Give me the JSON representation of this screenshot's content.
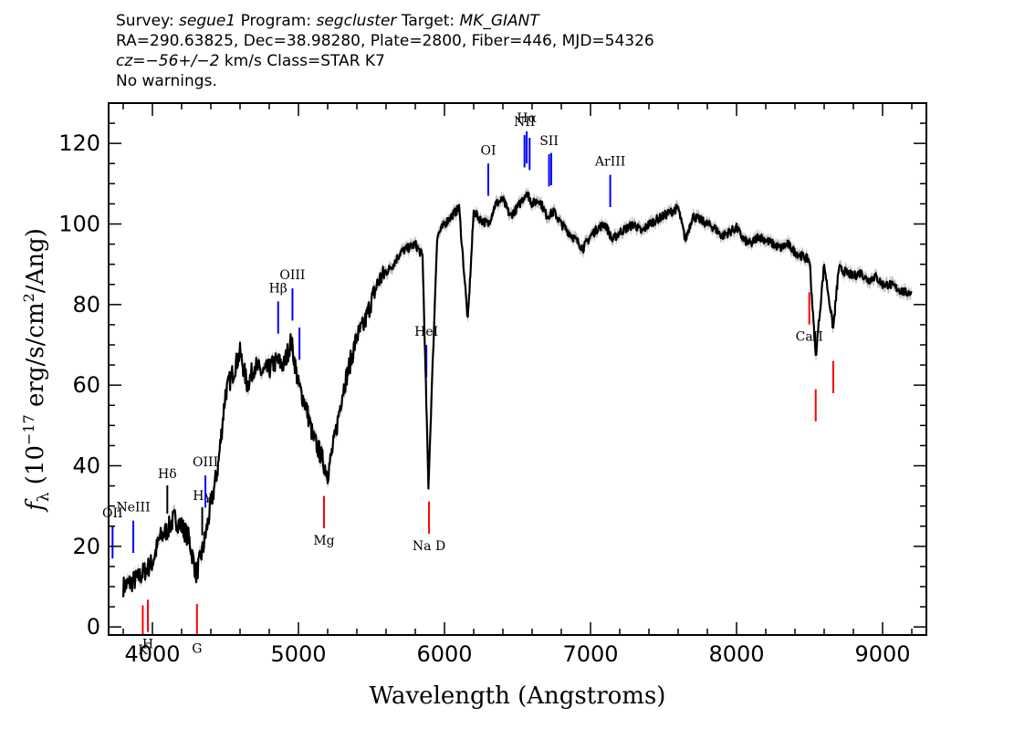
{
  "header": {
    "survey_label": "Survey:",
    "survey": "segue1",
    "program_label": "Program:",
    "program": "segcluster",
    "target_label": "Target:",
    "target": "MK_GIANT",
    "line2": "RA=290.63825, Dec=38.98280, Plate=2800, Fiber=446, MJD=54326",
    "cz_label": "cz=",
    "cz": "−56+/−2",
    "cz_rest": " km/s Class=STAR K7",
    "warnings": "No warnings."
  },
  "colors": {
    "spectrum": "#000000",
    "error": "#c0c0c0",
    "emission": "#0000ff",
    "absorption": "#ff0000",
    "ref_line": "#000000"
  },
  "chart_data": {
    "type": "line",
    "title": "",
    "xlabel": "Wavelength (Angstroms)",
    "ylabel": "f_λ (10^-17 erg/s/cm^2/Ang)",
    "xlim": [
      3700,
      9300
    ],
    "ylim": [
      -2,
      130
    ],
    "xticks": [
      4000,
      5000,
      6000,
      7000,
      8000,
      9000
    ],
    "yticks": [
      0,
      20,
      40,
      60,
      80,
      100,
      120
    ],
    "series": [
      {
        "x": [
          3800,
          3850,
          3900,
          3950,
          4000,
          4050,
          4100,
          4150,
          4200,
          4250,
          4300,
          4350,
          4400,
          4450,
          4500,
          4550,
          4600,
          4650,
          4700,
          4750,
          4800,
          4850,
          4900,
          4950,
          5000,
          5050,
          5100,
          5150,
          5200,
          5250,
          5300,
          5350,
          5400,
          5450,
          5500,
          5550,
          5600,
          5650,
          5700,
          5750,
          5800,
          5850,
          5890,
          5950,
          6000,
          6050,
          6100,
          6160,
          6200,
          6250,
          6300,
          6350,
          6400,
          6450,
          6500,
          6563,
          6600,
          6650,
          6700,
          6750,
          6800,
          6850,
          6900,
          6950,
          7000,
          7050,
          7100,
          7150,
          7200,
          7250,
          7300,
          7350,
          7400,
          7450,
          7500,
          7550,
          7600,
          7650,
          7700,
          7750,
          7800,
          7850,
          7900,
          7950,
          8000,
          8050,
          8100,
          8150,
          8200,
          8250,
          8300,
          8350,
          8400,
          8450,
          8500,
          8542,
          8600,
          8662,
          8700,
          8750,
          8800,
          8850,
          8900,
          8950,
          9000,
          9050,
          9100,
          9150,
          9200
        ],
        "y": [
          10,
          11,
          12,
          14,
          16,
          22,
          24,
          27,
          25,
          22,
          13,
          20,
          30,
          40,
          58,
          63,
          68,
          60,
          65,
          63,
          64,
          66,
          65,
          71,
          60,
          55,
          47,
          43,
          38,
          47,
          58,
          65,
          72,
          75,
          81,
          86,
          88,
          90,
          93,
          94,
          95,
          92,
          35,
          97,
          100,
          102,
          104,
          76,
          103,
          101,
          100,
          105,
          106,
          102,
          104,
          108,
          105,
          106,
          102,
          103,
          100,
          98,
          96,
          94,
          97,
          99,
          100,
          96,
          98,
          99,
          100,
          98,
          100,
          101,
          102,
          103,
          104,
          96,
          102,
          101,
          100,
          99,
          97,
          98,
          99,
          96,
          95,
          97,
          96,
          95,
          94,
          95,
          93,
          92,
          91,
          67,
          90,
          74,
          89,
          88,
          87,
          88,
          86,
          87,
          85,
          85,
          84,
          83,
          83
        ]
      }
    ],
    "line_markers": [
      {
        "label": "OII",
        "x": 3727,
        "type": "emission"
      },
      {
        "label": "NeIII",
        "x": 3869,
        "type": "emission"
      },
      {
        "label": "Hδ",
        "x": 4102,
        "type": "reference"
      },
      {
        "label": "Hγ",
        "x": 4341,
        "type": "reference"
      },
      {
        "label": "OIII",
        "x": 4363,
        "type": "emission"
      },
      {
        "label": "Hβ",
        "x": 4861,
        "type": "emission"
      },
      {
        "label": "OIII",
        "x": 4959,
        "type": "emission"
      },
      {
        "label": "OIII",
        "x": 5007,
        "type": "emission"
      },
      {
        "label": "HeI",
        "x": 5876,
        "type": "emission"
      },
      {
        "label": "OI",
        "x": 6300,
        "type": "emission"
      },
      {
        "label": "NII",
        "x": 6548,
        "type": "emission"
      },
      {
        "label": "Hα",
        "x": 6563,
        "type": "emission"
      },
      {
        "label": "NII",
        "x": 6583,
        "type": "emission"
      },
      {
        "label": "SII",
        "x": 6716,
        "type": "emission"
      },
      {
        "label": "SII",
        "x": 6731,
        "type": "emission"
      },
      {
        "label": "ArIII",
        "x": 7135,
        "type": "emission"
      },
      {
        "label": "K",
        "x": 3934,
        "type": "absorption"
      },
      {
        "label": "H",
        "x": 3969,
        "type": "absorption"
      },
      {
        "label": "G",
        "x": 4305,
        "type": "absorption"
      },
      {
        "label": "Mg",
        "x": 5175,
        "type": "absorption"
      },
      {
        "label": "Na D",
        "x": 5894,
        "type": "absorption"
      },
      {
        "label": "CaII",
        "x": 8498,
        "type": "absorption"
      },
      {
        "label": "CaII",
        "x": 8542,
        "type": "absorption"
      },
      {
        "label": "CaII",
        "x": 8662,
        "type": "absorption"
      }
    ]
  }
}
